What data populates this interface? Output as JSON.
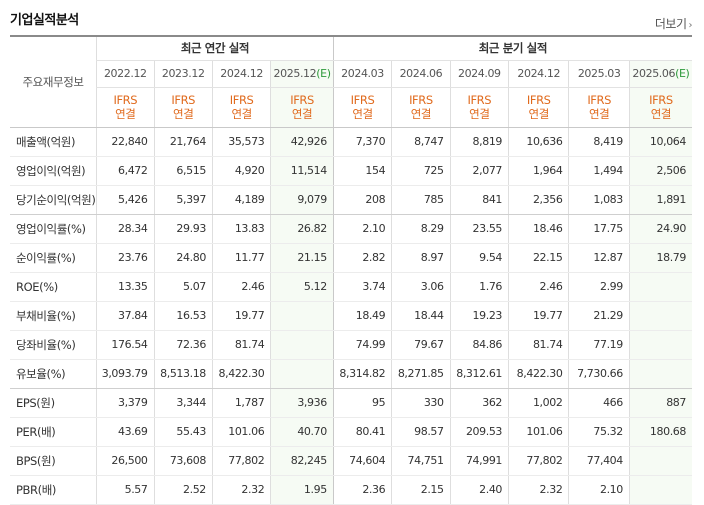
{
  "section": {
    "title": "기업실적분석",
    "more_label": "더보기",
    "more_icon": "chevron-right-icon"
  },
  "header": {
    "corner_label": "주요재무정보",
    "annual_label": "최근 연간 실적",
    "quarterly_label": "최근 분기 실적",
    "years": [
      {
        "label": "2022.12",
        "est": ""
      },
      {
        "label": "2023.12",
        "est": ""
      },
      {
        "label": "2024.12",
        "est": ""
      },
      {
        "label": "2025.12",
        "est": "(E)"
      },
      {
        "label": "2024.03",
        "est": ""
      },
      {
        "label": "2024.06",
        "est": ""
      },
      {
        "label": "2024.09",
        "est": ""
      },
      {
        "label": "2024.12",
        "est": ""
      },
      {
        "label": "2025.03",
        "est": ""
      },
      {
        "label": "2025.06",
        "est": "(E)"
      }
    ],
    "ifrs_line1": "IFRS",
    "ifrs_line2": "연결",
    "colors": {
      "ifrs": "#e06a1d",
      "estimate_mark": "#2e9a3b",
      "estimate_bg": "#f6fbf4"
    }
  },
  "rows": [
    {
      "label": "매출액(억원)",
      "values": [
        "22,840",
        "21,764",
        "35,573",
        "42,926",
        "7,370",
        "8,747",
        "8,819",
        "10,636",
        "8,419",
        "10,064"
      ]
    },
    {
      "label": "영업이익(억원)",
      "values": [
        "6,472",
        "6,515",
        "4,920",
        "11,514",
        "154",
        "725",
        "2,077",
        "1,964",
        "1,494",
        "2,506"
      ]
    },
    {
      "label": "당기순이익(억원)",
      "values": [
        "5,426",
        "5,397",
        "4,189",
        "9,079",
        "208",
        "785",
        "841",
        "2,356",
        "1,083",
        "1,891"
      ]
    },
    {
      "label": "영업이익률(%)",
      "values": [
        "28.34",
        "29.93",
        "13.83",
        "26.82",
        "2.10",
        "8.29",
        "23.55",
        "18.46",
        "17.75",
        "24.90"
      ]
    },
    {
      "label": "순이익률(%)",
      "values": [
        "23.76",
        "24.80",
        "11.77",
        "21.15",
        "2.82",
        "8.97",
        "9.54",
        "22.15",
        "12.87",
        "18.79"
      ]
    },
    {
      "label": "ROE(%)",
      "values": [
        "13.35",
        "5.07",
        "2.46",
        "5.12",
        "3.74",
        "3.06",
        "1.76",
        "2.46",
        "2.99",
        ""
      ]
    },
    {
      "label": "부채비율(%)",
      "values": [
        "37.84",
        "16.53",
        "19.77",
        "",
        "18.49",
        "18.44",
        "19.23",
        "19.77",
        "21.29",
        ""
      ]
    },
    {
      "label": "당좌비율(%)",
      "values": [
        "176.54",
        "72.36",
        "81.74",
        "",
        "74.99",
        "79.67",
        "84.86",
        "81.74",
        "77.19",
        ""
      ]
    },
    {
      "label": "유보율(%)",
      "values": [
        "3,093.79",
        "8,513.18",
        "8,422.30",
        "",
        "8,314.82",
        "8,271.85",
        "8,312.61",
        "8,422.30",
        "7,730.66",
        ""
      ]
    },
    {
      "label": "EPS(원)",
      "values": [
        "3,379",
        "3,344",
        "1,787",
        "3,936",
        "95",
        "330",
        "362",
        "1,002",
        "466",
        "887"
      ]
    },
    {
      "label": "PER(배)",
      "values": [
        "43.69",
        "55.43",
        "101.06",
        "40.70",
        "80.41",
        "98.57",
        "209.53",
        "101.06",
        "75.32",
        "180.68"
      ]
    },
    {
      "label": "BPS(원)",
      "values": [
        "26,500",
        "73,608",
        "77,802",
        "82,245",
        "74,604",
        "74,751",
        "74,991",
        "77,802",
        "77,404",
        ""
      ]
    },
    {
      "label": "PBR(배)",
      "values": [
        "5.57",
        "2.52",
        "2.32",
        "1.95",
        "2.36",
        "2.15",
        "2.40",
        "2.32",
        "2.10",
        ""
      ]
    }
  ]
}
